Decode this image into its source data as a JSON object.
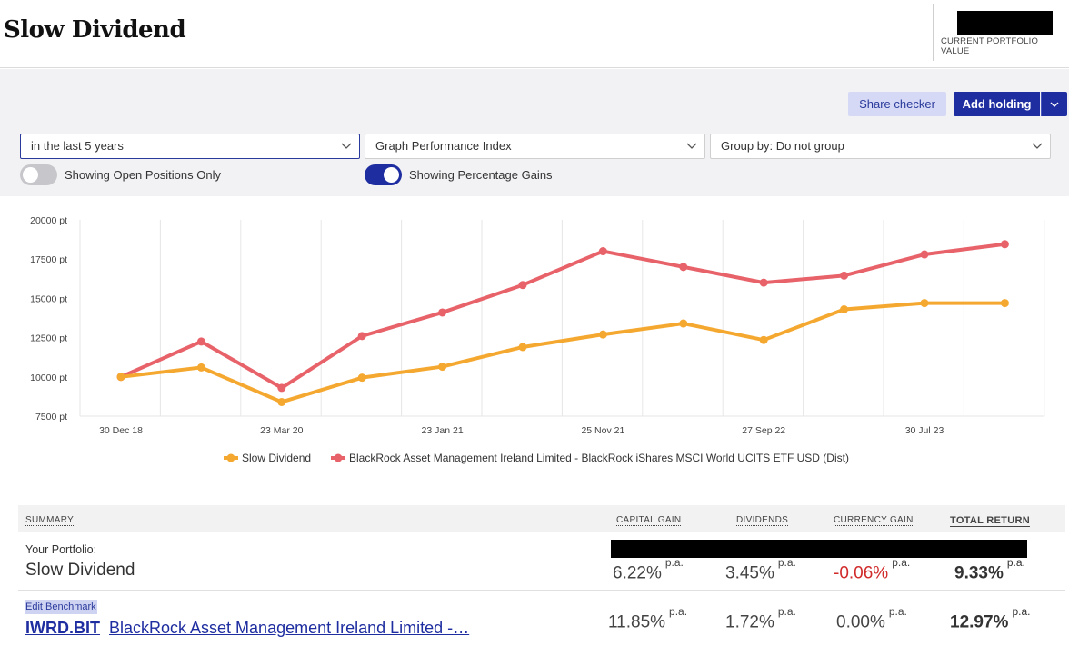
{
  "header": {
    "title": "Slow Dividend",
    "value_label": "CURRENT PORTFOLIO VALUE"
  },
  "toolbar": {
    "share_checker": "Share checker",
    "add_holding": "Add holding"
  },
  "filters": {
    "period": "in the last 5 years",
    "graph": "Graph Performance Index",
    "group": "Group by: Do not group",
    "toggle_open": "Showing Open Positions Only",
    "toggle_open_on": false,
    "toggle_pct": "Showing Percentage Gains",
    "toggle_pct_on": true
  },
  "colors": {
    "accent": "#1e2da0",
    "portfolio_line": "#f5a830",
    "benchmark_line": "#e8626a"
  },
  "chart_data": {
    "type": "line",
    "x_ticks": [
      "30 Dec 18",
      "23 Mar 20",
      "23 Jan 21",
      "25 Nov 21",
      "27 Sep 22",
      "30 Jul 23"
    ],
    "y_ticks": [
      "20000 pt",
      "17500 pt",
      "15000 pt",
      "12500 pt",
      "10000 pt",
      "7500 pt"
    ],
    "ylim": [
      7500,
      20000
    ],
    "grid": "vertical",
    "legend": "bottom",
    "series": [
      {
        "name": "Slow Dividend",
        "color": "#f5a830",
        "values": [
          10000,
          10600,
          8400,
          9950,
          10650,
          11900,
          12700,
          13400,
          12350,
          14300,
          14700,
          14700
        ]
      },
      {
        "name": "BlackRock Asset Management Ireland Limited - BlackRock iShares MSCI World UCITS ETF USD (Dist)",
        "color": "#e8626a",
        "values": [
          10000,
          12250,
          9300,
          12600,
          14100,
          15850,
          18000,
          17000,
          16000,
          16450,
          17800,
          18450
        ]
      }
    ]
  },
  "summary": {
    "head_label": "SUMMARY",
    "col_capital": "CAPITAL GAIN",
    "col_dividends": "DIVIDENDS",
    "col_currency": "CURRENCY GAIN",
    "col_total": "TOTAL RETURN",
    "pa": "p.a.",
    "portfolio": {
      "label": "Your Portfolio:",
      "name": "Slow Dividend",
      "capital": "6.22%",
      "dividends": "3.45%",
      "currency": "-0.06%",
      "total": "9.33%"
    },
    "benchmark": {
      "edit": "Edit Benchmark",
      "ticker": "IWRD.BIT",
      "name": "BlackRock Asset Management Ireland Limited -…",
      "capital": "11.85%",
      "dividends": "1.72%",
      "currency": "0.00%",
      "total": "12.97%"
    }
  }
}
